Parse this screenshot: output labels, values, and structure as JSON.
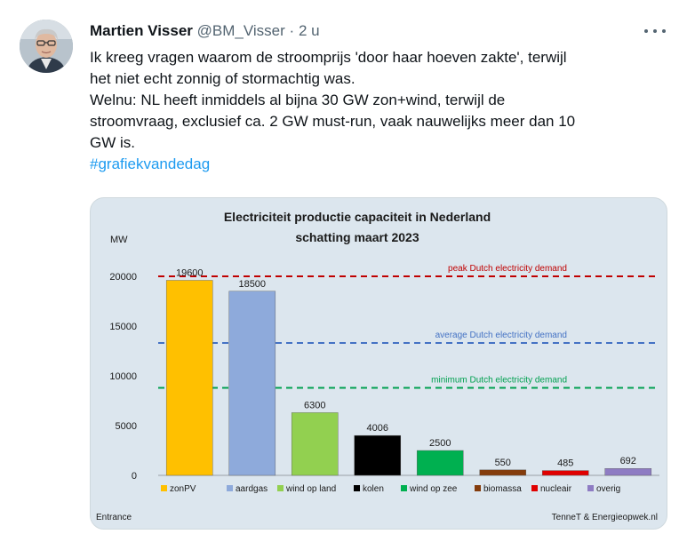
{
  "tweet": {
    "author_name": "Martien Visser",
    "handle": "@BM_Visser",
    "separator": "·",
    "time": "2 u",
    "text_lines": [
      "Ik kreeg vragen waarom de stroomprijs 'door haar hoeven zakte', terwijl",
      "het niet echt zonnig of stormachtig was.",
      "Welnu: NL heeft inmiddels al bijna 30 GW zon+wind, terwijl de",
      "stroomvraag, exclusief ca. 2 GW must-run, vaak nauwelijks meer dan 10",
      "GW is."
    ],
    "hashtag": "#grafiekvandedag",
    "more_icon": "more-horizontal-icon"
  },
  "chart_data": {
    "type": "bar",
    "title": "Electriciteit productie capaciteit in Nederland",
    "subtitle": "schatting maart 2023",
    "ylabel": "MW",
    "ylim": [
      0,
      20000
    ],
    "yticks": [
      0,
      5000,
      10000,
      15000,
      20000
    ],
    "categories": [
      "zonPV",
      "aardgas",
      "wind op land",
      "kolen",
      "wind op zee",
      "biomassa",
      "nucleair",
      "overig"
    ],
    "values": [
      19600,
      18500,
      6300,
      4006,
      2500,
      550,
      485,
      692
    ],
    "colors": [
      "#ffc000",
      "#8eaadb",
      "#92d050",
      "#000000",
      "#00b050",
      "#843c0c",
      "#e00000",
      "#8e7cc3"
    ],
    "reference_lines": [
      {
        "label": "peak Dutch electricity demand",
        "value": 20000,
        "color": "#c00000"
      },
      {
        "label": "average Dutch electricity demand",
        "value": 13300,
        "color": "#4472c4"
      },
      {
        "label": "minimum Dutch electricity demand",
        "value": 8800,
        "color": "#00a050"
      }
    ],
    "legend_position": "bottom",
    "footer_left": "Entrance",
    "footer_right": "TenneT & Energieopwek.nl"
  }
}
